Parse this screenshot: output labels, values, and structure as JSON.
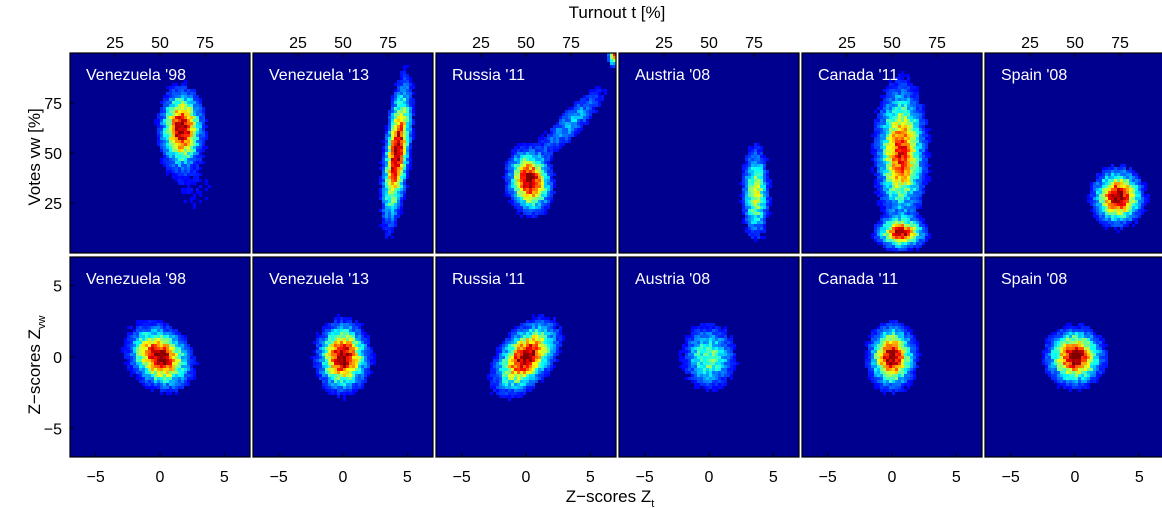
{
  "figure": {
    "top_axis_label": "Turnout t [%]",
    "top_ylabel": "Votes vw [%]",
    "bottom_ylabel_main": "Z−scores Z",
    "bottom_ylabel_sub": "vw",
    "bottom_xlabel_main": "Z−scores Z",
    "bottom_xlabel_sub": "t"
  },
  "colors": {
    "background": "#00008f",
    "colormap": "jet",
    "label_text": "#ffffff"
  },
  "chart_data": [
    {
      "type": "heatmap",
      "row": "top",
      "title": "Venezuela '98",
      "xlabel": "Turnout t [%]",
      "ylabel": "Votes vw [%]",
      "xlim": [
        0,
        100
      ],
      "ylim": [
        0,
        100
      ],
      "xticks": [
        "25",
        "50",
        "75"
      ],
      "yticks": [
        "25",
        "50",
        "75"
      ],
      "clusters": [
        {
          "cx": 62,
          "cy": 62,
          "sx": 6,
          "sy": 10,
          "rot": 0,
          "weight": 1.0
        },
        {
          "cx": 70,
          "cy": 30,
          "sx": 12,
          "sy": 12,
          "rot": 0,
          "weight": 0.06
        }
      ]
    },
    {
      "type": "heatmap",
      "row": "top",
      "title": "Venezuela '13",
      "xticks": [
        "25",
        "50",
        "75"
      ],
      "clusters": [
        {
          "cx": 80,
          "cy": 50,
          "sx": 3.5,
          "sy": 18,
          "rot": -0.12,
          "weight": 1.0
        }
      ]
    },
    {
      "type": "heatmap",
      "row": "top",
      "title": "Russia '11",
      "xticks": [
        "25",
        "50",
        "75"
      ],
      "clusters": [
        {
          "cx": 52,
          "cy": 36,
          "sx": 6,
          "sy": 8,
          "rot": 0.2,
          "weight": 1.0
        },
        {
          "cx": 75,
          "cy": 65,
          "sx": 15,
          "sy": 4,
          "rot": 0.75,
          "weight": 0.25
        },
        {
          "cx": 99,
          "cy": 99,
          "sx": 1.8,
          "sy": 3,
          "rot": 0,
          "weight": 0.8
        }
      ]
    },
    {
      "type": "heatmap",
      "row": "top",
      "title": "Austria '08",
      "xticks": [
        "25",
        "50",
        "75"
      ],
      "clusters": [
        {
          "cx": 76,
          "cy": 30,
          "sx": 4,
          "sy": 12,
          "rot": 0,
          "weight": 0.55
        }
      ]
    },
    {
      "type": "heatmap",
      "row": "top",
      "title": "Canada '11",
      "xticks": [
        "25",
        "50",
        "75"
      ],
      "clusters": [
        {
          "cx": 55,
          "cy": 50,
          "sx": 7,
          "sy": 17,
          "rot": 0,
          "weight": 0.85
        },
        {
          "cx": 55,
          "cy": 10,
          "sx": 7,
          "sy": 4,
          "rot": 0,
          "weight": 0.9
        }
      ]
    },
    {
      "type": "heatmap",
      "row": "top",
      "title": "Spain '08",
      "xticks": [
        "25",
        "50",
        "75"
      ],
      "clusters": [
        {
          "cx": 74,
          "cy": 28,
          "sx": 7,
          "sy": 7,
          "rot": 0,
          "weight": 1.0
        }
      ]
    },
    {
      "type": "heatmap",
      "row": "bottom",
      "title": "Venezuela '98",
      "xlabel": "Z−scores Zt",
      "ylabel": "Z−scores Zvw",
      "xlim": [
        -7,
        7
      ],
      "ylim": [
        -7,
        7
      ],
      "xticks": [
        "−5",
        "0",
        "5"
      ],
      "yticks": [
        "−5",
        "0",
        "5"
      ],
      "clusters": [
        {
          "cx": 0,
          "cy": 0,
          "sx": 1.3,
          "sy": 1.0,
          "rot": -0.6,
          "weight": 1.0
        }
      ]
    },
    {
      "type": "heatmap",
      "row": "bottom",
      "title": "Venezuela '13",
      "xticks": [
        "−5",
        "0",
        "5"
      ],
      "clusters": [
        {
          "cx": 0,
          "cy": 0,
          "sx": 1.0,
          "sy": 1.2,
          "rot": 0,
          "weight": 1.0
        }
      ]
    },
    {
      "type": "heatmap",
      "row": "bottom",
      "title": "Russia '11",
      "xticks": [
        "−5",
        "0",
        "5"
      ],
      "clusters": [
        {
          "cx": 0,
          "cy": 0,
          "sx": 1.5,
          "sy": 0.9,
          "rot": 0.8,
          "weight": 1.0
        }
      ]
    },
    {
      "type": "heatmap",
      "row": "bottom",
      "title": "Austria '08",
      "xticks": [
        "−5",
        "0",
        "5"
      ],
      "clusters": [
        {
          "cx": 0,
          "cy": 0,
          "sx": 1.1,
          "sy": 1.2,
          "rot": 0,
          "weight": 0.45
        }
      ]
    },
    {
      "type": "heatmap",
      "row": "bottom",
      "title": "Canada '11",
      "xticks": [
        "−5",
        "0",
        "5"
      ],
      "clusters": [
        {
          "cx": 0,
          "cy": 0,
          "sx": 0.9,
          "sy": 1.1,
          "rot": 0,
          "weight": 1.0
        }
      ]
    },
    {
      "type": "heatmap",
      "row": "bottom",
      "title": "Spain '08",
      "xticks": [
        "−5",
        "0",
        "5"
      ],
      "clusters": [
        {
          "cx": 0,
          "cy": 0,
          "sx": 1.1,
          "sy": 1.0,
          "rot": 0,
          "weight": 1.0
        }
      ]
    }
  ]
}
